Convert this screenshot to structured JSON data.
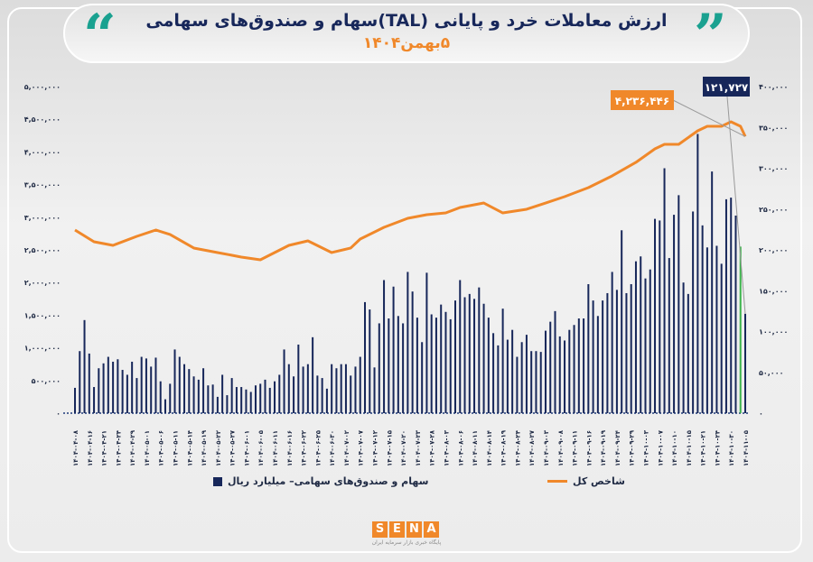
{
  "header": {
    "title": "ارزش معاملات خرد و پایانی (TAL)سهام و صندوق‌های سهامی",
    "date": "۵بهمن۱۴۰۴",
    "quote_left": "“",
    "quote_right": "”"
  },
  "colors": {
    "bar": "#17275a",
    "bar_highlight": "#3cb44b",
    "line": "#f0882a",
    "title": "#17275a",
    "accent": "#1aa190"
  },
  "chart_data": {
    "type": "bar+line",
    "title": "ارزش معاملات خرد و پایانی (TAL)سهام و صندوق‌های سهامی",
    "subtitle": "۵بهمن۱۴۰۴",
    "left_axis": {
      "label": "شاخص کل",
      "ylim": [
        0,
        5000000
      ],
      "ticks": [
        "۰",
        "۵۰۰,۰۰۰",
        "۱,۰۰۰,۰۰۰",
        "۱,۵۰۰,۰۰۰",
        "۲,۰۰۰,۰۰۰",
        "۲,۵۰۰,۰۰۰",
        "۳,۰۰۰,۰۰۰",
        "۳,۵۰۰,۰۰۰",
        "۴,۰۰۰,۰۰۰",
        "۴,۵۰۰,۰۰۰",
        "۵,۰۰۰,۰۰۰"
      ]
    },
    "right_axis": {
      "label": "سهام و صندوق‌های سهامی– میلیارد ریال",
      "ylim": [
        0,
        400000
      ],
      "ticks": [
        "۰",
        "۵۰,۰۰۰",
        "۱۰۰,۰۰۰",
        "۱۵۰,۰۰۰",
        "۲۰۰,۰۰۰",
        "۲۵۰,۰۰۰",
        "۳۰۰,۰۰۰",
        "۳۵۰,۰۰۰",
        "۴۰۰,۰۰۰"
      ]
    },
    "x_labels": [
      "۱۴۰۴-۰۴-۰۸",
      "۱۴۰۴-۰۴-۱۶",
      "۱۴۰۴-۰۴-۲۱",
      "۱۴۰۴-۰۴-۲۴",
      "۱۴۰۴-۰۴-۲۹",
      "۱۴۰۴-۰۵-۰۱",
      "۱۴۰۴-۰۵-۰۶",
      "۱۴۰۴-۰۵-۱۱",
      "۱۴۰۴-۰۵-۱۴",
      "۱۴۰۴-۰۵-۱۹",
      "۱۴۰۴-۰۵-۲۲",
      "۱۴۰۴-۰۵-۲۷",
      "۱۴۰۴-۰۶-۰۱",
      "۱۴۰۴-۰۶-۰۵",
      "۱۴۰۴-۰۶-۱۱",
      "۱۴۰۴-۰۶-۱۶",
      "۱۴۰۴-۰۶-۲۲",
      "۱۴۰۴-۰۶-۲۵",
      "۱۴۰۴-۰۶-۳۰",
      "۱۴۰۴-۰۷-۰۲",
      "۱۴۰۴-۰۷-۰۷",
      "۱۴۰۴-۰۷-۱۲",
      "۱۴۰۴-۰۷-۱۵",
      "۱۴۰۴-۰۷-۲۰",
      "۱۴۰۴-۰۷-۲۳",
      "۱۴۰۴-۰۷-۲۸",
      "۱۴۰۴-۰۸-۰۳",
      "۱۴۰۴-۰۸-۰۶",
      "۱۴۰۴-۰۸-۱۱",
      "۱۴۰۴-۰۸-۱۴",
      "۱۴۰۴-۰۸-۱۹",
      "۱۴۰۴-۰۸-۲۴",
      "۱۴۰۴-۰۸-۲۷",
      "۱۴۰۴-۰۹-۰۳",
      "۱۴۰۴-۰۹-۰۸",
      "۱۴۰۴-۰۹-۱۱",
      "۱۴۰۴-۰۹-۱۶",
      "۱۴۰۴-۰۹-۱۹",
      "۱۴۰۴-۰۹-۲۴",
      "۱۴۰۴-۰۹-۲۹",
      "۱۴۰۴-۱۰-۰۳",
      "۱۴۰۴-۱۰-۰۷",
      "۱۴۰۴-۱۰-۱۰",
      "۱۴۰۴-۱۰-۱۵",
      "۱۴۰۴-۱۰-۲۱",
      "۱۴۰۴-۱۰-۲۴",
      "۱۴۰۴-۱۰-۳۰",
      "۱۴۰۴-۱۱-۰۵"
    ],
    "series": [
      {
        "name": "سهام و صندوق‌های سهامی– میلیارد ریال",
        "type": "bar",
        "axis": "right",
        "unit": "thousand",
        "values": [
          31,
          76,
          114,
          73,
          32,
          55,
          61,
          69,
          63,
          66,
          53,
          47,
          63,
          43,
          69,
          67,
          57,
          68,
          39,
          17,
          36,
          78,
          69,
          60,
          54,
          45,
          41,
          55,
          34,
          35,
          20,
          47,
          22,
          43,
          32,
          32,
          29,
          26,
          34,
          36,
          41,
          31,
          39,
          47,
          78,
          60,
          45,
          84,
          57,
          60,
          93,
          46,
          43,
          30,
          60,
          55,
          60,
          60,
          46,
          57,
          69,
          136,
          127,
          56,
          110,
          163,
          116,
          155,
          119,
          110,
          173,
          149,
          117,
          87,
          172,
          121,
          117,
          133,
          124,
          115,
          138,
          163,
          142,
          146,
          140,
          154,
          134,
          117,
          98,
          83,
          128,
          90,
          102,
          69,
          87,
          96,
          76,
          76,
          75,
          101,
          112,
          125,
          94,
          89,
          102,
          108,
          116,
          116,
          158,
          138,
          119,
          138,
          147,
          173,
          151,
          224,
          147,
          158,
          186,
          192,
          165,
          176,
          238,
          236,
          300,
          190,
          243,
          267,
          160,
          146,
          247,
          342,
          230,
          203,
          296,
          205,
          183,
          262,
          264,
          242,
          204,
          121.727
        ]
      },
      {
        "name": "شاخص کل",
        "type": "line",
        "axis": "left",
        "unit": "thousand",
        "points": [
          [
            0,
            2804
          ],
          [
            4,
            2624
          ],
          [
            8,
            2569
          ],
          [
            13,
            2707
          ],
          [
            17,
            2804
          ],
          [
            20,
            2735
          ],
          [
            25,
            2528
          ],
          [
            30,
            2459
          ],
          [
            35,
            2390
          ],
          [
            39,
            2348
          ],
          [
            45,
            2569
          ],
          [
            49,
            2638
          ],
          [
            54,
            2459
          ],
          [
            58,
            2528
          ],
          [
            60,
            2666
          ],
          [
            65,
            2845
          ],
          [
            70,
            2983
          ],
          [
            74,
            3039
          ],
          [
            78,
            3066
          ],
          [
            81,
            3149
          ],
          [
            86,
            3218
          ],
          [
            90,
            3066
          ],
          [
            95,
            3122
          ],
          [
            99,
            3218
          ],
          [
            103,
            3315
          ],
          [
            108,
            3453
          ],
          [
            113,
            3633
          ],
          [
            118,
            3840
          ],
          [
            122,
            4047
          ],
          [
            124,
            4116
          ],
          [
            127,
            4116
          ],
          [
            131,
            4323
          ],
          [
            133,
            4392
          ],
          [
            136,
            4392
          ],
          [
            138,
            4461
          ],
          [
            140,
            4392
          ],
          [
            141,
            4236.446
          ]
        ]
      }
    ],
    "annotations": {
      "line_last": "۴,۲۳۶,۴۴۶",
      "bar_last": "۱۲۱,۷۲۷"
    },
    "legend": {
      "placement": "bottom",
      "bar_label": "سهام و صندوق‌های سهامی– میلیارد ریال",
      "line_label": "شاخص کل"
    }
  },
  "footer": {
    "logo": [
      "S",
      "E",
      "N",
      "A"
    ],
    "logo_sub": "پایگاه خبری بازار سرمایه ایران"
  }
}
